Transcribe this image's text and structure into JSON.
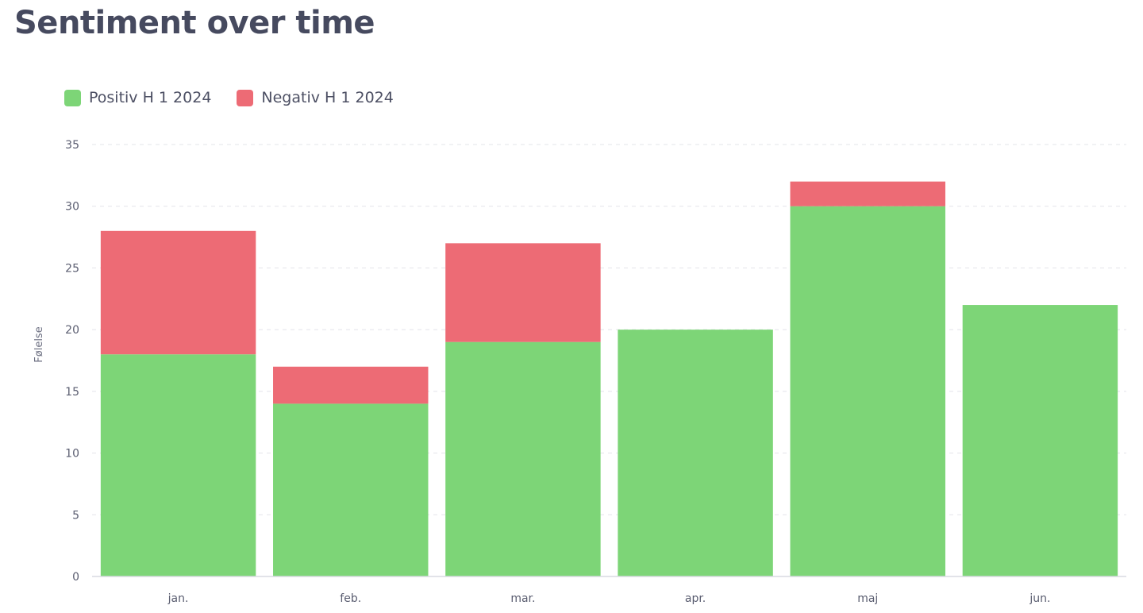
{
  "title": "Sentiment over time",
  "legend": [
    {
      "label": "Positiv H 1 2024",
      "color": "#7dd577"
    },
    {
      "label": "Negativ H 1 2024",
      "color": "#ed6b75"
    }
  ],
  "chart_data": {
    "type": "bar",
    "stacked": true,
    "categories": [
      "jan.",
      "feb.",
      "mar.",
      "apr.",
      "maj",
      "jun."
    ],
    "series": [
      {
        "name": "Positiv H 1 2024",
        "color": "#7dd577",
        "values": [
          18,
          14,
          19,
          20,
          30,
          22
        ]
      },
      {
        "name": "Negativ H 1 2024",
        "color": "#ed6b75",
        "values": [
          10,
          3,
          8,
          0,
          2,
          0
        ]
      }
    ],
    "ylabel": "Følelse",
    "xlabel": "",
    "ylim": [
      0,
      35
    ],
    "yticks": [
      0,
      5,
      10,
      15,
      20,
      25,
      30,
      35
    ],
    "grid": true,
    "legend_position": "top-left"
  }
}
